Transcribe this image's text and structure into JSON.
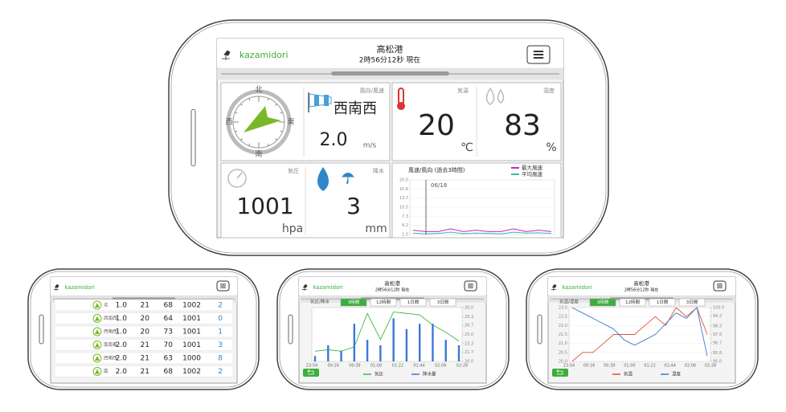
{
  "header": {
    "brand": "kazamidori",
    "title": "高松港",
    "subtitle": "2時56分12秒 現在"
  },
  "wind": {
    "label": "風向/風速",
    "compass": {
      "north": "北",
      "east": "東",
      "south": "南",
      "west": "西"
    },
    "direction": "西南西",
    "speed": "2.0",
    "unit": "m/s"
  },
  "temperature": {
    "label": "気温",
    "value": 20,
    "unit": "℃"
  },
  "humidity": {
    "label": "湿度",
    "value": 83,
    "unit": "%"
  },
  "pressure": {
    "label": "気圧",
    "value": 1001,
    "unit": "hpa"
  },
  "rain": {
    "label": "降水",
    "value": 3,
    "unit": "mm"
  },
  "wind_chart": {
    "type": "line",
    "title": "風速/風向 (過去3時間)",
    "date": "06/18",
    "ylim": [
      1,
      20
    ],
    "yticks": [
      {
        "value": 1,
        "label": "1.0"
      },
      {
        "value": 4.2,
        "label": "4.2"
      },
      {
        "value": 7.3,
        "label": "7.3"
      },
      {
        "value": 10.5,
        "label": "10.5"
      },
      {
        "value": 13.7,
        "label": "13.7"
      },
      {
        "value": 16.8,
        "label": "16.8"
      },
      {
        "value": 20,
        "label": "20.0"
      }
    ],
    "series": [
      {
        "name": "最大風速",
        "color": "#d020d0",
        "values": [
          2.5,
          2,
          2,
          3,
          2,
          2.5,
          2,
          2,
          3,
          2,
          2.5,
          2
        ]
      },
      {
        "name": "平均風速",
        "color": "#30c0b0",
        "values": [
          1.5,
          1.2,
          1.4,
          1.8,
          1.3,
          1.5,
          1.4,
          1.2,
          1.8,
          1.5,
          1.6,
          1.4
        ]
      }
    ]
  },
  "table": {
    "rows": [
      [
        "北",
        "1.0",
        21,
        68,
        1002,
        2
      ],
      [
        "西南西",
        "1.0",
        20,
        64,
        1001,
        0
      ],
      [
        "西南西",
        "1.0",
        20,
        73,
        1001,
        1
      ],
      [
        "南南東",
        "2.0",
        21,
        70,
        1001,
        3
      ],
      [
        "西南西",
        "2.0",
        21,
        63,
        1000,
        8
      ],
      [
        "南",
        "2.0",
        21,
        68,
        1002,
        2
      ]
    ]
  },
  "pressure_chart": {
    "type": "bar-line",
    "label": "気圧/降水",
    "tabs": [
      "3時間",
      "12時間",
      "1日間",
      "3日間"
    ],
    "xlabels": [
      "23:54",
      "00:16",
      "00:39",
      "01:00",
      "01:22",
      "01:44",
      "02:06",
      "02:28"
    ],
    "ylim": [
      999.5,
      1003.2
    ],
    "y2lim": [
      20,
      30
    ],
    "y2ticks": [
      {
        "value": 30,
        "label": "30.0"
      },
      28.3,
      26.7,
      {
        "value": 25,
        "label": "25.0"
      },
      23.3,
      21.7,
      {
        "value": 20,
        "label": "20.0"
      }
    ],
    "series": [
      {
        "name": "気圧",
        "color": "#3cb83c",
        "values": [
          1000.2,
          1000.3,
          1000.2,
          1000.5,
          1002.8,
          1001.0,
          1002.9,
          1002.8,
          1002.7,
          1002.0,
          1001.5,
          1000.9
        ]
      },
      {
        "name": "降水量",
        "color": "#3a78d8",
        "axis": "y2",
        "values": [
          21,
          23,
          22,
          27,
          24,
          23,
          28,
          26,
          27,
          27,
          24,
          23
        ]
      }
    ]
  },
  "temp_chart": {
    "type": "line",
    "label": "気温/湿度",
    "tabs": [
      "3時間",
      "12時間",
      "1日間",
      "3日間"
    ],
    "xlabels": [
      "23:54",
      "00:16",
      "00:39",
      "01:00",
      "01:22",
      "01:44",
      "02:06",
      "02:28"
    ],
    "ylim": [
      20,
      23
    ],
    "yticks": [
      {
        "value": 23,
        "label": "23.0"
      },
      22.5,
      {
        "value": 22,
        "label": "22.0"
      },
      21.5,
      {
        "value": 21,
        "label": "21.0"
      },
      20.5,
      {
        "value": 20,
        "label": "20.0"
      }
    ],
    "y2lim": [
      95,
      100
    ],
    "y2ticks": [
      {
        "value": 100,
        "label": "100.0"
      },
      99.2,
      98.3,
      97.5,
      96.7,
      95.8,
      {
        "value": 95,
        "label": "95.0"
      }
    ],
    "series": [
      {
        "name": "気温",
        "color": "#e05030",
        "values": [
          20.0,
          20.5,
          20.5,
          21.0,
          21.5,
          21.5,
          21.5,
          22.0,
          22.5,
          22.0,
          23.0,
          22.5,
          23.0,
          21.5
        ]
      },
      {
        "name": "湿度",
        "color": "#3a78d8",
        "axis": "y2",
        "values": [
          100,
          99.5,
          99,
          98.5,
          98,
          97,
          96.5,
          97,
          97.5,
          98.5,
          99.5,
          99,
          100,
          95.5
        ]
      }
    ]
  }
}
